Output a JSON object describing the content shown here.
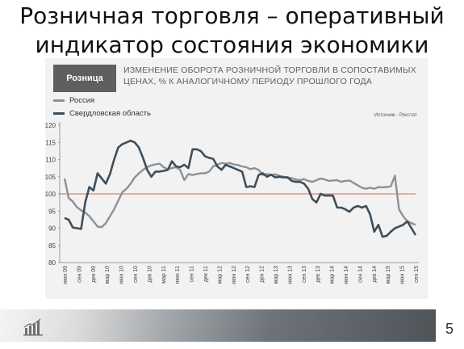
{
  "slide": {
    "title_line1": "Розничная торговля – оперативный",
    "title_line2": "индикатор состояния экономики",
    "page_number": "5",
    "footer_icon": "bar-chart-icon"
  },
  "chart_data": {
    "type": "line",
    "badge": "Розница",
    "title_line1": "ИЗМЕНЕНИЕ ОБОРОТА РОЗНИЧНОЙ ТОРГОВЛИ В СОПОСТАВИМЫХ",
    "title_line2": "ЦЕНАХ, % К АНАЛОГИЧНОМУ ПЕРИОДУ ПРОШЛОГО ГОДА",
    "source": "Источник - Росстат",
    "xlabel": "",
    "ylabel": "",
    "ylim": [
      80,
      120
    ],
    "yticks": [
      80,
      85,
      90,
      95,
      100,
      105,
      110,
      115,
      120
    ],
    "reference_line": 100,
    "reference_color": "#e06050",
    "x_tick_labels": [
      "июн 09",
      "сен 09",
      "дек 09",
      "мар 10",
      "июн 10",
      "сен 10",
      "дек 10",
      "мар 11",
      "июн 11",
      "сен 11",
      "дек 11",
      "мар 12",
      "июн 12",
      "сен 12",
      "дек 12",
      "мар 13",
      "июн 13",
      "сен 13",
      "дек 13",
      "мар 14",
      "июн 14",
      "сен 14",
      "дек 14",
      "мар 15",
      "июн 15",
      "сен 15"
    ],
    "legend_position": "top-left",
    "series": [
      {
        "name": "Россия",
        "color": "#8e9194",
        "values": [
          104.5,
          98.8,
          97.8,
          96.1,
          95.2,
          94.6,
          93.5,
          92.0,
          90.5,
          90.3,
          91.5,
          93.5,
          95.5,
          98.0,
          100.5,
          101.5,
          103.0,
          104.8,
          106.0,
          107.0,
          107.8,
          108.3,
          108.6,
          108.8,
          107.8,
          107.2,
          107.5,
          107.8,
          107.0,
          104.0,
          105.8,
          105.5,
          105.8,
          106.0,
          106.0,
          106.5,
          108.0,
          108.5,
          109.0,
          108.8,
          109.0,
          108.6,
          108.4,
          108.0,
          107.8,
          107.2,
          107.5,
          107.0,
          105.5,
          105.8,
          105.5,
          105.7,
          105.3,
          105.0,
          104.8,
          104.6,
          104.2,
          104.0,
          104.3,
          103.8,
          103.5,
          104.0,
          104.5,
          104.2,
          103.8,
          103.9,
          104.0,
          103.5,
          103.8,
          103.9,
          103.2,
          102.5,
          101.8,
          101.5,
          101.8,
          101.5,
          102.0,
          101.9,
          102.0,
          102.2,
          105.3,
          95.5,
          93.5,
          92.0,
          91.5,
          91.0
        ]
      },
      {
        "name": "Свердловская область",
        "color": "#3f4e5a",
        "values": [
          93.0,
          92.5,
          90.2,
          90.0,
          89.8,
          97.5,
          102.0,
          101.0,
          106.0,
          104.5,
          103.0,
          105.8,
          110.0,
          113.5,
          114.5,
          115.0,
          115.5,
          115.0,
          113.5,
          110.5,
          107.0,
          105.0,
          106.5,
          106.5,
          106.7,
          107.0,
          109.5,
          108.0,
          107.8,
          108.5,
          107.5,
          113.0,
          113.0,
          112.5,
          111.0,
          110.5,
          110.2,
          108.0,
          107.0,
          108.5,
          108.0,
          107.5,
          107.0,
          106.5,
          102.0,
          102.2,
          102.0,
          105.5,
          106.0,
          105.0,
          105.6,
          104.8,
          105.0,
          104.8,
          104.8,
          103.8,
          103.5,
          103.5,
          103.0,
          101.5,
          98.5,
          97.5,
          100.0,
          99.5,
          99.5,
          99.5,
          96.0,
          96.0,
          95.5,
          94.8,
          96.0,
          96.5,
          96.0,
          96.5,
          94.0,
          89.0,
          91.0,
          87.5,
          87.8,
          89.0,
          90.0,
          90.5,
          91.0,
          92.0,
          90.0,
          88.0
        ]
      }
    ]
  }
}
